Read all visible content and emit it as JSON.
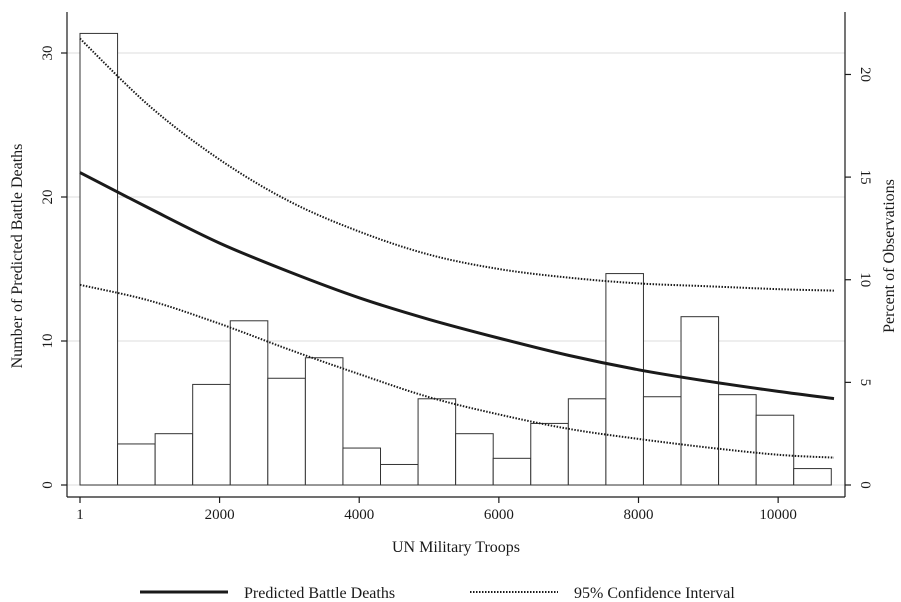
{
  "chart_data": {
    "type": "bar",
    "combined_with": "line",
    "x_axis": {
      "label": "UN Military Troops",
      "ticks": [
        1,
        2000,
        4000,
        6000,
        8000,
        10000
      ],
      "range": [
        1,
        10800
      ]
    },
    "y_left": {
      "label": "Number of Predicted Battle Deaths",
      "ticks": [
        0,
        10,
        20,
        30
      ],
      "range": [
        0,
        32.5
      ],
      "grid": true
    },
    "y_right": {
      "label": "Percent of Observations",
      "ticks": [
        0,
        5,
        10,
        15,
        20
      ],
      "range": [
        0,
        22.8
      ]
    },
    "histogram": {
      "axis": "right",
      "bin_width": 538,
      "bin_start": 1,
      "values": [
        22.0,
        2.0,
        2.5,
        4.9,
        8.0,
        5.2,
        6.2,
        1.8,
        1.0,
        4.2,
        2.5,
        1.3,
        3.0,
        4.2,
        10.3,
        4.3,
        8.2,
        4.4,
        3.4,
        0.8
      ]
    },
    "series": [
      {
        "name": "Predicted Battle Deaths",
        "style": "solid",
        "axis": "left",
        "x": [
          1,
          1000,
          2000,
          3000,
          4000,
          5000,
          6000,
          7000,
          8000,
          9000,
          10000,
          10800
        ],
        "y": [
          21.7,
          19.2,
          16.8,
          14.8,
          13.0,
          11.5,
          10.2,
          9.0,
          8.0,
          7.2,
          6.5,
          6.0
        ]
      },
      {
        "name": "95% Confidence Interval",
        "style": "dotted",
        "axis": "left",
        "x": [
          1,
          1000,
          2000,
          3000,
          4000,
          5000,
          6000,
          7000,
          8000,
          9000,
          10000,
          10800
        ],
        "y": [
          31.0,
          26.3,
          22.6,
          19.7,
          17.6,
          16.0,
          15.0,
          14.4,
          14.0,
          13.8,
          13.6,
          13.5
        ]
      },
      {
        "name": "95% Confidence Interval lower",
        "style": "dotted",
        "axis": "left",
        "x": [
          1,
          1000,
          2000,
          3000,
          4000,
          5000,
          6000,
          7000,
          8000,
          9000,
          10000,
          10800
        ],
        "y": [
          13.9,
          12.8,
          11.2,
          9.4,
          7.7,
          6.1,
          4.9,
          3.9,
          3.2,
          2.6,
          2.1,
          1.9
        ]
      }
    ],
    "legend": {
      "position": "bottom",
      "items": [
        {
          "label": "Predicted Battle Deaths",
          "style": "solid"
        },
        {
          "label": "95% Confidence Interval",
          "style": "dotted"
        }
      ]
    },
    "colors": {
      "line": "#1a1a1a",
      "bar_fill": "#ffffff",
      "bar_stroke": "#333333",
      "grid": "#e3e3e3",
      "axis": "#1a1a1a"
    }
  }
}
